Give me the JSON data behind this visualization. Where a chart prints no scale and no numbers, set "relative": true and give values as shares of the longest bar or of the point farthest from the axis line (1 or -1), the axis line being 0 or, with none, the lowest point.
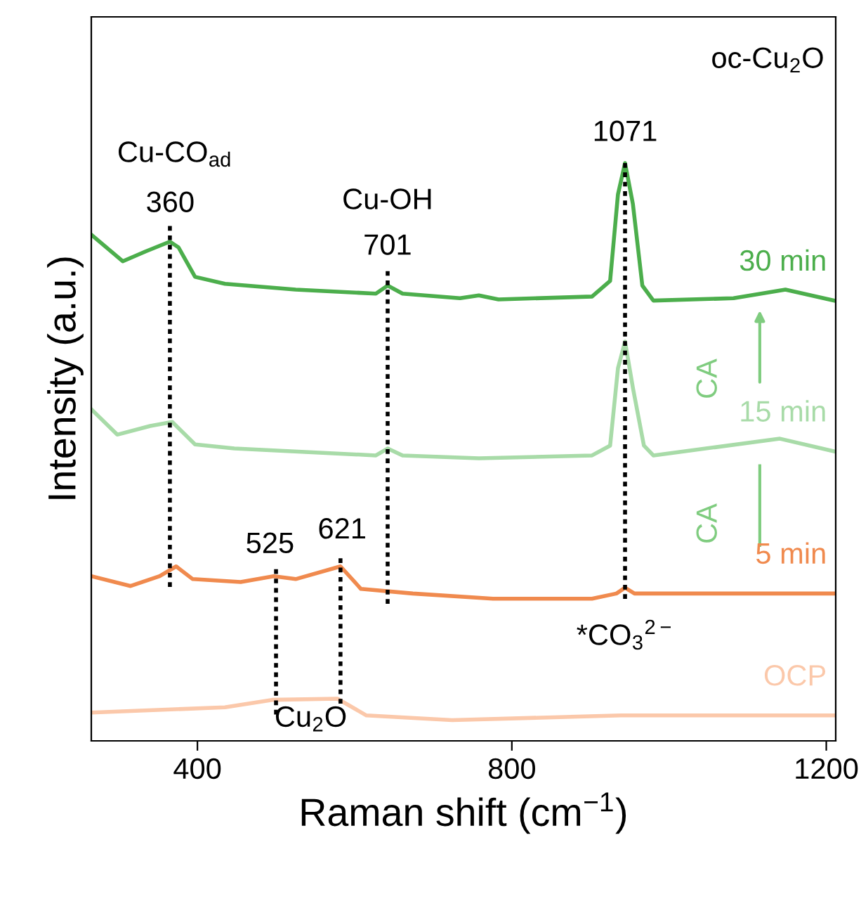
{
  "chart_data": {
    "type": "line",
    "relative": true,
    "xlabel": "Raman shift (cm$^{−1}$)",
    "ylabel": "Intensity (a.u.)",
    "xlim": [
      265,
      1212
    ],
    "xticks": [
      400,
      800,
      1200
    ],
    "tick_labels": "x",
    "legend": false,
    "grid": false,
    "line_style": "solid",
    "marker": "none",
    "series": [
      {
        "name": "30 min",
        "color": "#4cae4c",
        "x": [
          265,
          305,
          334,
          365,
          376,
          397,
          435,
          525,
          627,
          642,
          661,
          734,
          758,
          783,
          902,
          925,
          935,
          944,
          954,
          966,
          980,
          1082,
          1148,
          1210
        ],
        "values": [
          0.876,
          0.83,
          0.847,
          0.864,
          0.854,
          0.803,
          0.791,
          0.781,
          0.774,
          0.788,
          0.774,
          0.766,
          0.771,
          0.764,
          0.769,
          0.796,
          0.946,
          1.0,
          0.929,
          0.788,
          0.762,
          0.766,
          0.781,
          0.762
        ]
      },
      {
        "name": "15 min",
        "color": "#a8dba8",
        "x": [
          265,
          298,
          340,
          368,
          397,
          447,
          627,
          642,
          661,
          758,
          902,
          925,
          935,
          944,
          954,
          968,
          980,
          1141,
          1210
        ],
        "values": [
          0.574,
          0.53,
          0.545,
          0.552,
          0.513,
          0.506,
          0.494,
          0.506,
          0.494,
          0.489,
          0.494,
          0.511,
          0.645,
          0.691,
          0.611,
          0.511,
          0.494,
          0.523,
          0.501
        ]
      },
      {
        "name": "5 min",
        "color": "#f08a4e",
        "x": [
          265,
          315,
          352,
          373,
          394,
          455,
          497,
          525,
          582,
          608,
          674,
          776,
          902,
          933,
          944,
          956,
          1210
        ],
        "values": [
          0.285,
          0.268,
          0.285,
          0.302,
          0.28,
          0.275,
          0.285,
          0.28,
          0.302,
          0.263,
          0.255,
          0.246,
          0.246,
          0.255,
          0.265,
          0.255,
          0.255
        ]
      },
      {
        "name": "OCP",
        "color": "#fbc8aa",
        "x": [
          265,
          435,
          495,
          578,
          615,
          724,
          939,
          1210
        ],
        "values": [
          0.049,
          0.058,
          0.071,
          0.073,
          0.044,
          0.036,
          0.044,
          0.044
        ]
      },
      {
        "color": "#000000",
        "line_style": "dotted",
        "x": [
          365,
          365
        ],
        "values": [
          0.891,
          0.263
        ]
      },
      {
        "color": "#000000",
        "line_style": "dotted",
        "x": [
          642,
          642
        ],
        "values": [
          0.813,
          0.234
        ]
      },
      {
        "color": "#000000",
        "line_style": "dotted",
        "x": [
          500,
          500
        ],
        "values": [
          0.297,
          0.041
        ]
      },
      {
        "color": "#000000",
        "line_style": "dotted",
        "x": [
          582,
          582
        ],
        "values": [
          0.316,
          0.058
        ]
      },
      {
        "color": "#000000",
        "line_style": "dotted",
        "x": [
          944,
          944
        ],
        "values": [
          1.0,
          0.241
        ]
      }
    ],
    "annotations": [
      "Cu-CO$_{ad}$",
      "360",
      "Cu-OH",
      "701",
      "525",
      "621",
      "Cu$_{2}$O",
      "1071",
      "*CO$_{3}$$^{2−}$",
      "oc-Cu$_{2}$O",
      "CA",
      "CA"
    ]
  }
}
